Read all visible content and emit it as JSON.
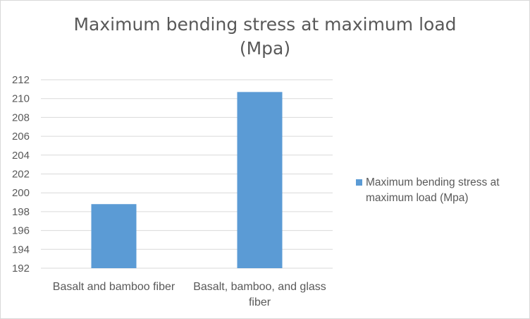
{
  "chart_data": {
    "type": "bar",
    "title_line1": "Maximum bending stress at maximum load",
    "title_line2": "(Mpa)",
    "categories": [
      "Basalt and bamboo fiber",
      "Basalt,  bamboo, and glass fiber"
    ],
    "series": [
      {
        "name": "Maximum bending stress at maximum load (Mpa)",
        "values": [
          198.8,
          210.7
        ],
        "color": "#5b9bd5"
      }
    ],
    "ylim": [
      192,
      212
    ],
    "yticks": [
      "192",
      "194",
      "196",
      "198",
      "200",
      "202",
      "204",
      "206",
      "208",
      "210",
      "212"
    ],
    "grid": true,
    "legend_position": "right"
  }
}
